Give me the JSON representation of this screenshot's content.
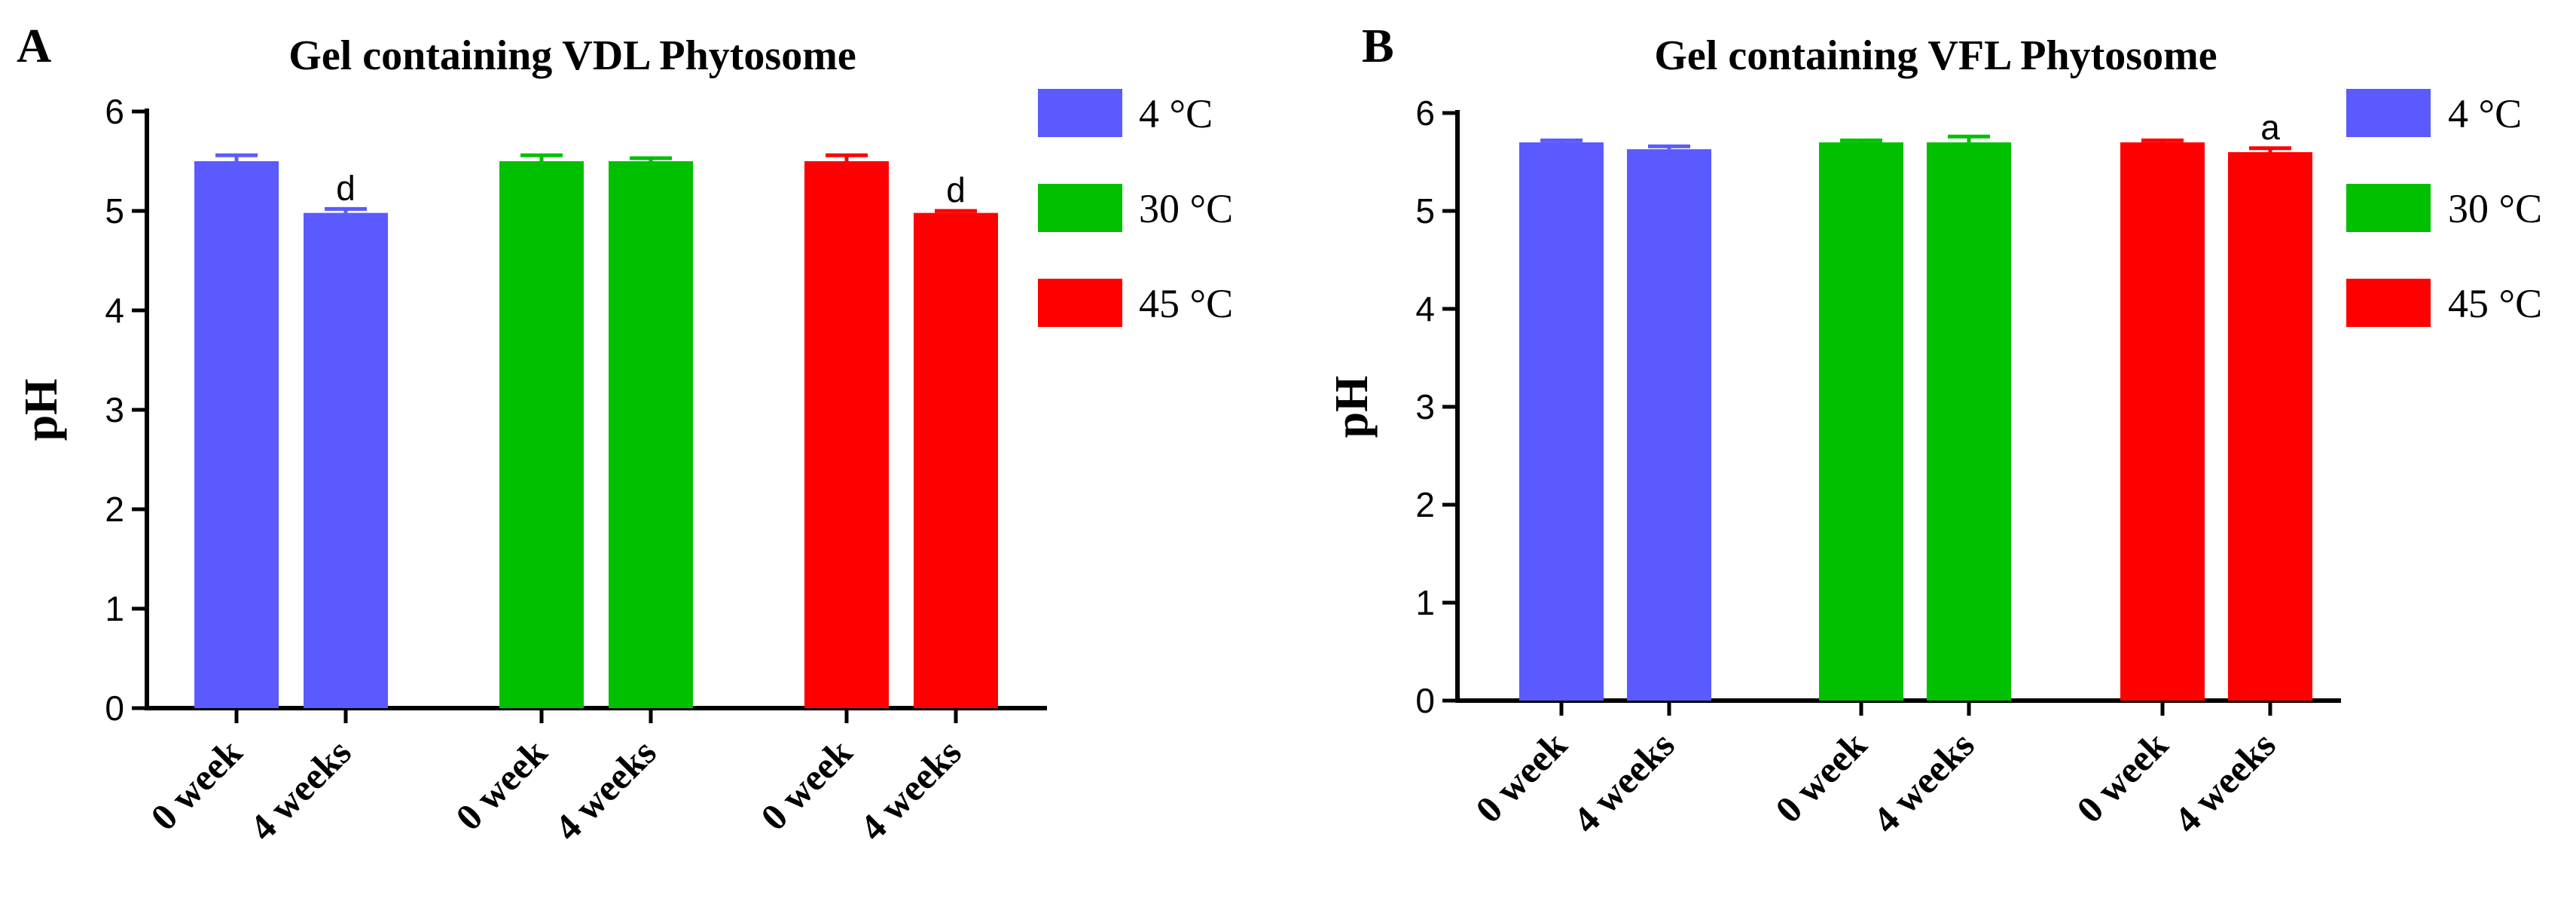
{
  "chart_data": [
    {
      "type": "bar",
      "panel": "A",
      "title": "Gel containing VDL Phytosome",
      "ylabel": "pH",
      "xlabel": "",
      "ylim": [
        0,
        6
      ],
      "yticks": [
        "0",
        "1",
        "2",
        "3",
        "4",
        "5",
        "6"
      ],
      "categories": [
        "0 week",
        "4 weeks",
        "0 week",
        "4 weeks",
        "0 week",
        "4 weeks"
      ],
      "groups": [
        {
          "name": "4 °C",
          "color": "#5a5aff",
          "values": [
            5.5,
            4.98
          ],
          "errors": [
            0.06,
            0.04
          ],
          "annotations": [
            "",
            "d"
          ]
        },
        {
          "name": "30 °C",
          "color": "#00c000",
          "values": [
            5.5,
            5.5
          ],
          "errors": [
            0.06,
            0.03
          ],
          "annotations": [
            "",
            ""
          ]
        },
        {
          "name": "45 °C",
          "color": "#ff0000",
          "values": [
            5.5,
            4.98
          ],
          "errors": [
            0.06,
            0.02
          ],
          "annotations": [
            "",
            "d"
          ]
        }
      ],
      "legend": [
        "4 °C",
        "30 °C",
        "45 °C"
      ],
      "legend_position": "right"
    },
    {
      "type": "bar",
      "panel": "B",
      "title": "Gel containing VFL Phytosome",
      "ylabel": "pH",
      "xlabel": "",
      "ylim": [
        0,
        6
      ],
      "yticks": [
        "0",
        "1",
        "2",
        "3",
        "4",
        "5",
        "6"
      ],
      "categories": [
        "0 week",
        "4 weeks",
        "0 week",
        "4 weeks",
        "0 week",
        "4 weeks"
      ],
      "groups": [
        {
          "name": "4 °C",
          "color": "#5a5aff",
          "values": [
            5.7,
            5.63
          ],
          "errors": [
            0.02,
            0.03
          ],
          "annotations": [
            "",
            ""
          ]
        },
        {
          "name": "30 °C",
          "color": "#00c000",
          "values": [
            5.7,
            5.7
          ],
          "errors": [
            0.02,
            0.06
          ],
          "annotations": [
            "",
            ""
          ]
        },
        {
          "name": "45 °C",
          "color": "#ff0000",
          "values": [
            5.7,
            5.6
          ],
          "errors": [
            0.02,
            0.04
          ],
          "annotations": [
            "",
            "a"
          ]
        }
      ],
      "legend": [
        "4 °C",
        "30 °C",
        "45 °C"
      ],
      "legend_position": "right"
    }
  ]
}
